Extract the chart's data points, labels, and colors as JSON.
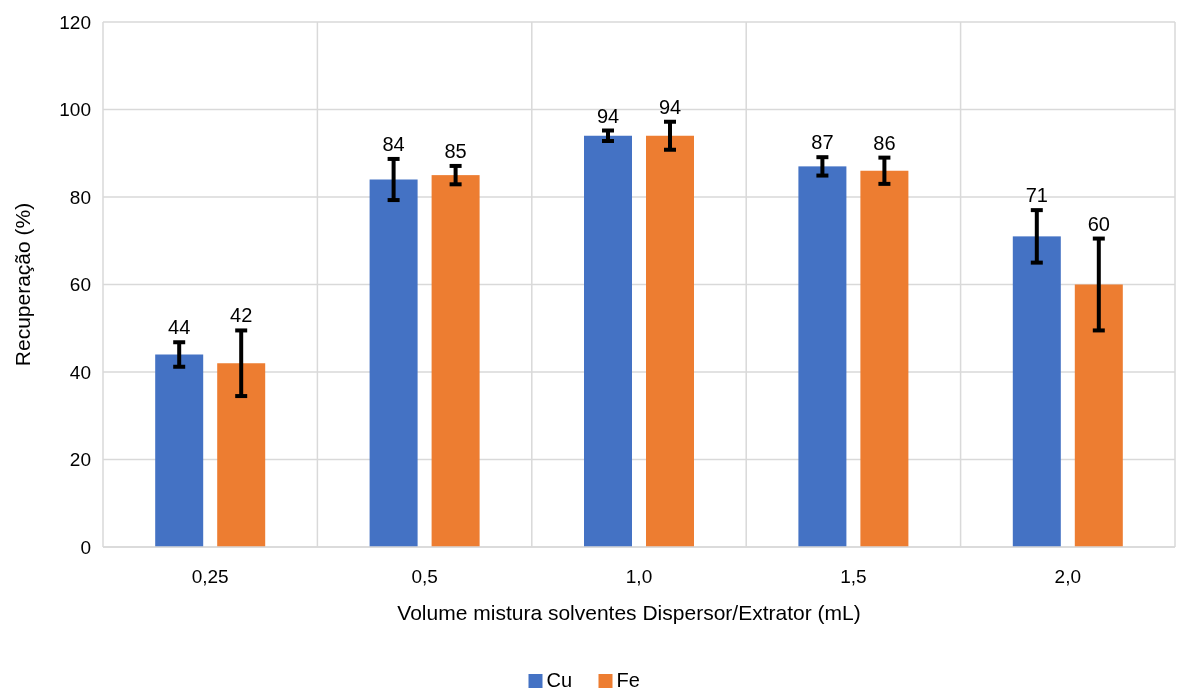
{
  "chart_data": {
    "type": "bar",
    "xlabel": "Volume mistura solventes Dispersor/Extrator (mL)",
    "ylabel": "Recuperação (%)",
    "categories": [
      "0,25",
      "0,5",
      "1,0",
      "1,5",
      "2,0"
    ],
    "series": [
      {
        "name": "Cu",
        "color": "#4472c4",
        "values": [
          44,
          84,
          94,
          87,
          71
        ],
        "errors": [
          2.8,
          4.7,
          1.2,
          2.1,
          6
        ]
      },
      {
        "name": "Fe",
        "color": "#ed7d31",
        "values": [
          42,
          85,
          94,
          86,
          60
        ],
        "errors": [
          7.5,
          2.1,
          3.2,
          3,
          10.5
        ]
      }
    ],
    "ylim": [
      0,
      120
    ],
    "yticks": [
      0,
      20,
      40,
      60,
      80,
      100,
      120
    ],
    "grid": true,
    "legend": "bottom",
    "data_labels": true
  }
}
